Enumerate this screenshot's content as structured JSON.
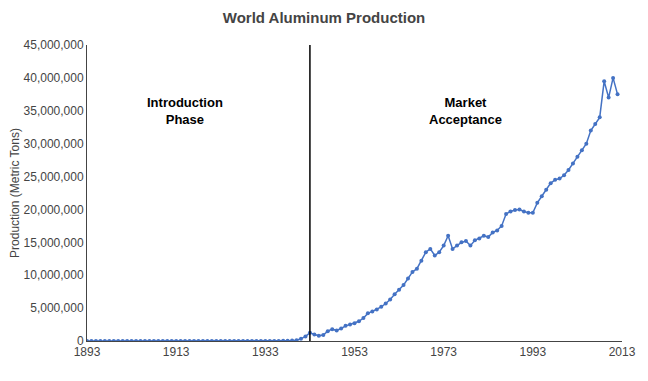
{
  "chart_data": {
    "type": "line",
    "title": "World Aluminum Production",
    "y_label": "Production (Metric Tons)",
    "x": [
      1893,
      1894,
      1895,
      1896,
      1897,
      1898,
      1899,
      1900,
      1901,
      1902,
      1903,
      1904,
      1905,
      1906,
      1907,
      1908,
      1909,
      1910,
      1911,
      1912,
      1913,
      1914,
      1915,
      1916,
      1917,
      1918,
      1919,
      1920,
      1921,
      1922,
      1923,
      1924,
      1925,
      1926,
      1927,
      1928,
      1929,
      1930,
      1931,
      1932,
      1933,
      1934,
      1935,
      1936,
      1937,
      1938,
      1939,
      1940,
      1941,
      1942,
      1943,
      1944,
      1945,
      1946,
      1947,
      1948,
      1949,
      1950,
      1951,
      1952,
      1953,
      1954,
      1955,
      1956,
      1957,
      1958,
      1959,
      1960,
      1961,
      1962,
      1963,
      1964,
      1965,
      1966,
      1967,
      1968,
      1969,
      1970,
      1971,
      1972,
      1973,
      1974,
      1975,
      1976,
      1977,
      1978,
      1979,
      1980,
      1981,
      1982,
      1983,
      1984,
      1985,
      1986,
      1987,
      1988,
      1989,
      1990,
      1991,
      1992,
      1993,
      1994,
      1995,
      1996,
      1997,
      1998,
      1999,
      2000,
      2001,
      2002,
      2003,
      2004,
      2005,
      2006,
      2007,
      2008,
      2009,
      2010,
      2011,
      2012
    ],
    "values": [
      180,
      200,
      240,
      280,
      320,
      400,
      500,
      600,
      700,
      820,
      1000,
      1200,
      1400,
      1600,
      1900,
      2000,
      2300,
      2700,
      3000,
      3500,
      3800,
      3500,
      3300,
      4000,
      5500,
      6500,
      5000,
      4500,
      2500,
      3000,
      4500,
      5500,
      6500,
      7500,
      8000,
      9000,
      11000,
      13000,
      10000,
      8000,
      8500,
      10000,
      12000,
      18000,
      30000,
      40000,
      60000,
      130000,
      330000,
      700000,
      1240000,
      1000000,
      800000,
      900000,
      1500000,
      1800000,
      1600000,
      1900000,
      2300000,
      2500000,
      2700000,
      3000000,
      3500000,
      4200000,
      4500000,
      4800000,
      5200000,
      5700000,
      6300000,
      7100000,
      7800000,
      8500000,
      9500000,
      10500000,
      11000000,
      12200000,
      13500000,
      14000000,
      13000000,
      13500000,
      14500000,
      16000000,
      14000000,
      14500000,
      15000000,
      15200000,
      14500000,
      15300000,
      15600000,
      16000000,
      15800000,
      16500000,
      16800000,
      17500000,
      19300000,
      19700000,
      19900000,
      20000000,
      19700000,
      19500000,
      19500000,
      21000000,
      22000000,
      23000000,
      24000000,
      24500000,
      24700000,
      25200000,
      26000000,
      27000000,
      28000000,
      29000000,
      30000000,
      32000000,
      33000000,
      34000000,
      39500000,
      37000000,
      40000000,
      37500000
    ],
    "color": "#4472C4",
    "marker": "circle",
    "xlim": [
      1893,
      2013
    ],
    "xticks": [
      1893,
      1913,
      1933,
      1953,
      1973,
      1993,
      2013
    ],
    "ylim": [
      0,
      45000000
    ],
    "yticks": [
      0,
      {
        "value": 5000000,
        "label": "5,000,000"
      },
      {
        "value": 10000000,
        "label": "10,000,000"
      },
      {
        "value": 15000000,
        "label": "15,000,000"
      },
      {
        "value": 20000000,
        "label": "20,000,000"
      },
      {
        "value": 25000000,
        "label": "25,000,000"
      },
      {
        "value": 30000000,
        "label": "30,000,000"
      },
      {
        "value": 35000000,
        "label": "35,000,000"
      },
      {
        "value": 40000000,
        "label": "40,000,000"
      },
      {
        "value": 45000000,
        "label": "45,000,000"
      }
    ],
    "grid": false,
    "divider": {
      "x": 1943,
      "color": "#000000"
    },
    "annotations": [
      {
        "text": "Introduction\nPhase",
        "x": 1915,
        "y": 35000000
      },
      {
        "text": "Market\nAcceptance",
        "x": 1978,
        "y": 35000000
      }
    ]
  }
}
